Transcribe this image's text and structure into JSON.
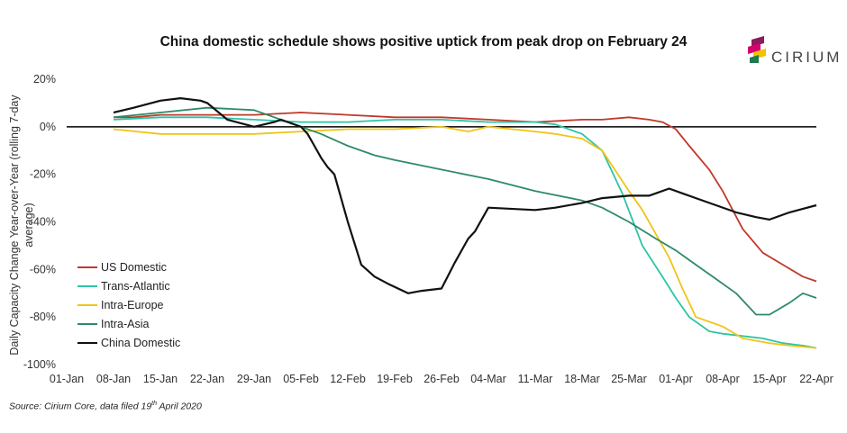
{
  "title": "China domestic schedule shows positive uptick from peak drop on February 24",
  "logo": {
    "text": "CIRIUM",
    "colors": [
      "#8b1b5e",
      "#d6006e",
      "#f2c200",
      "#1f7a50"
    ]
  },
  "source": {
    "prefix": "Source: Cirium Core, data filed 19",
    "sup": "th",
    "suffix": " April 2020"
  },
  "chart_data": {
    "type": "line",
    "title": "China domestic schedule shows positive uptick from peak drop on February 24",
    "ylabel": "Daily Capacity Change Year-over-Year (rolling 7-day average)",
    "xlabel": "",
    "ylim": [
      -100,
      20
    ],
    "yticks": [
      20,
      0,
      -20,
      -40,
      -60,
      -80,
      -100
    ],
    "ytick_labels": [
      "20%",
      "0%",
      "-20%",
      "-40%",
      "-60%",
      "-80%",
      "-100%"
    ],
    "xlim": [
      0,
      112
    ],
    "xticks": [
      0,
      7,
      14,
      21,
      28,
      35,
      42,
      49,
      56,
      63,
      70,
      77,
      84,
      91,
      98,
      105,
      112
    ],
    "xtick_labels": [
      "01-Jan",
      "08-Jan",
      "15-Jan",
      "22-Jan",
      "29-Jan",
      "05-Feb",
      "12-Feb",
      "19-Feb",
      "26-Feb",
      "04-Mar",
      "11-Mar",
      "18-Mar",
      "25-Mar",
      "01-Apr",
      "08-Apr",
      "15-Apr",
      "22-Apr"
    ],
    "legend_position": "bottom-left",
    "series": [
      {
        "name": "US Domestic",
        "color": "#c0392b",
        "x": [
          7,
          10,
          14,
          17,
          21,
          28,
          35,
          42,
          49,
          56,
          63,
          70,
          77,
          80,
          84,
          87,
          89,
          91,
          93,
          96,
          98,
          101,
          104,
          107,
          110,
          112
        ],
        "y": [
          4,
          4,
          5,
          5,
          5,
          5,
          6,
          5,
          4,
          4,
          3,
          2,
          3,
          3,
          4,
          3,
          2,
          -1,
          -8,
          -18,
          -27,
          -43,
          -53,
          -58,
          -63,
          -65
        ]
      },
      {
        "name": "Trans-Atlantic",
        "color": "#2ec4a5",
        "x": [
          7,
          14,
          21,
          28,
          35,
          42,
          49,
          56,
          63,
          70,
          73,
          77,
          80,
          83,
          86,
          89,
          91,
          93,
          96,
          98,
          101,
          104,
          107,
          110,
          112
        ],
        "y": [
          3,
          4,
          4,
          3,
          2,
          2,
          3,
          3,
          2,
          2,
          1,
          -3,
          -10,
          -28,
          -50,
          -63,
          -72,
          -80,
          -86,
          -87,
          -88,
          -89,
          -91,
          -92,
          -93
        ]
      },
      {
        "name": "Intra-Europe",
        "color": "#f0c419",
        "x": [
          7,
          14,
          21,
          28,
          35,
          42,
          49,
          56,
          60,
          63,
          70,
          73,
          77,
          80,
          84,
          86,
          88,
          90,
          92,
          94,
          96,
          98,
          101,
          105,
          108,
          112
        ],
        "y": [
          -1,
          -3,
          -3,
          -3,
          -2,
          -1,
          -1,
          0,
          -2,
          0,
          -2,
          -3,
          -5,
          -10,
          -27,
          -35,
          -45,
          -55,
          -68,
          -80,
          -82,
          -84,
          -89,
          -91,
          -92,
          -93
        ]
      },
      {
        "name": "Intra-Asia",
        "color": "#2e8b65",
        "x": [
          7,
          14,
          21,
          28,
          35,
          38,
          42,
          46,
          49,
          56,
          63,
          70,
          77,
          80,
          84,
          88,
          91,
          94,
          97,
          100,
          103,
          105,
          108,
          110,
          112
        ],
        "y": [
          4,
          6,
          8,
          7,
          0,
          -3,
          -8,
          -12,
          -14,
          -18,
          -22,
          -27,
          -31,
          -34,
          -40,
          -47,
          -52,
          -58,
          -64,
          -70,
          -79,
          -79,
          -74,
          -70,
          -72
        ]
      },
      {
        "name": "China Domestic",
        "color": "#111111",
        "x": [
          7,
          10,
          14,
          17,
          20,
          21,
          24,
          28,
          31,
          32,
          35,
          36,
          37,
          38,
          39,
          40,
          42,
          44,
          46,
          48,
          51,
          53,
          56,
          58,
          60,
          61,
          63,
          70,
          73,
          77,
          80,
          84,
          87,
          88,
          90,
          92,
          94,
          97,
          100,
          103,
          105,
          108,
          112
        ],
        "y": [
          6,
          8,
          11,
          12,
          11,
          10,
          3,
          0,
          2,
          3,
          0,
          -3,
          -8,
          -13,
          -17,
          -20,
          -40,
          -58,
          -63,
          -66,
          -70,
          -69,
          -68,
          -57,
          -47,
          -44,
          -34,
          -35,
          -34,
          -32,
          -30,
          -29,
          -29,
          -28,
          -26,
          -28,
          -30,
          -33,
          -36,
          -38,
          -39,
          -36,
          -33
        ]
      }
    ]
  }
}
